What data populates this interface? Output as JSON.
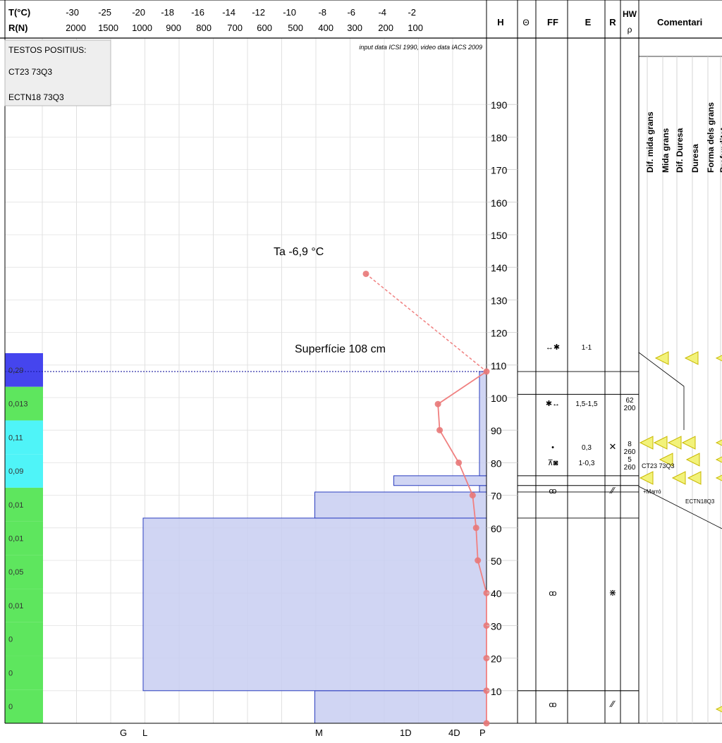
{
  "header": {
    "t_label": "T(°C)",
    "r_label": "R(N)",
    "t_ticks": [
      "-30",
      "-25",
      "-20",
      "-18",
      "-16",
      "-14",
      "-12",
      "-10",
      "-8",
      "-6",
      "-4",
      "-2"
    ],
    "r_ticks": [
      "2000",
      "1500",
      "1000",
      "900",
      "800",
      "700",
      "600",
      "500",
      "400",
      "300",
      "200",
      "100"
    ],
    "col_H": "H",
    "col_theta": "Θ",
    "col_FF": "FF",
    "col_E": "E",
    "col_R": "R",
    "col_HW": "HW",
    "col_rho": "ρ",
    "col_comments": "Comentari"
  },
  "tests_box": {
    "title": "TESTOS POSITIUS:",
    "lines": [
      "CT23 73Q3",
      "ECTN18 73Q3"
    ]
  },
  "source_note": "input data ICSI 1990, video data IACS 2009",
  "air_temp_label": "Ta  -6,9 °C",
  "surface_label": "Superfície  108 cm",
  "hardness_bottom_labels": [
    "G",
    "L",
    "M",
    "1D",
    "4D",
    "P"
  ],
  "comment_headers": [
    "Dif. mida grans",
    "Mida grans",
    "Dif. Duresa",
    "Duresa",
    "Forma dels grans",
    "Profunditat"
  ],
  "colors": {
    "layer_fill": "#c8cef1",
    "layer_stroke": "#2a3dbf",
    "temp_line": "#f08080",
    "temp_point": "#e87878",
    "surface_line": "#1a1aa0",
    "stability_blue": "#4545ee",
    "stability_green": "#5ee65e",
    "stability_cyan": "#4ff4f8",
    "triangle_fill": "#f2f27a",
    "triangle_stroke": "#c8b800"
  },
  "stability": [
    {
      "value": "0,29",
      "color": "blue"
    },
    {
      "value": "0,013",
      "color": "green"
    },
    {
      "value": "0,11",
      "color": "cyan"
    },
    {
      "value": "0,09",
      "color": "cyan"
    },
    {
      "value": "0,01",
      "color": "green"
    },
    {
      "value": "0,01",
      "color": "green"
    },
    {
      "value": "0,05",
      "color": "green"
    },
    {
      "value": "0,01",
      "color": "green"
    },
    {
      "value": "0",
      "color": "green"
    },
    {
      "value": "0",
      "color": "green"
    },
    {
      "value": "0",
      "color": "green"
    }
  ],
  "layer_table": [
    {
      "ff": "↔✱",
      "e": "1-1",
      "r": "",
      "hw": "",
      "rho": ""
    },
    {
      "ff": "✱↔",
      "e": "1,5-1,5",
      "r": "",
      "hw": "62",
      "rho": "200"
    },
    {
      "ff": "•",
      "e": "0,3",
      "r": "✕",
      "hw": "8",
      "rho": "260"
    },
    {
      "ff": "⊼◙",
      "e": "1-0,3",
      "r": "",
      "hw": "5",
      "rho": "260"
    },
    {
      "ff": "ꝏ",
      "e": "",
      "r": "⁄⁄",
      "hw": "",
      "rho": ""
    },
    {
      "ff": "ꝏ",
      "e": "",
      "r": "⋇",
      "hw": "",
      "rho": ""
    },
    {
      "ff": "ꝏ",
      "e": "",
      "r": "⁄⁄",
      "hw": "",
      "rho": ""
    }
  ],
  "comment_notes": [
    "CT23 73Q3",
    "+Marró",
    "ECTN18Q3"
  ],
  "chart_data": {
    "type": "line",
    "title": "",
    "height_axis": {
      "label": "H",
      "unit": "cm",
      "min": 0,
      "max": 200,
      "ticks": [
        10,
        20,
        30,
        40,
        50,
        60,
        70,
        80,
        90,
        100,
        110,
        120,
        130,
        140,
        150,
        160,
        170,
        180,
        190
      ]
    },
    "surface_height": 108,
    "temperature_series": {
      "name": "",
      "points": [
        {
          "h": 138,
          "t": -6.9
        },
        {
          "h": 108,
          "t": 0
        },
        {
          "h": 98,
          "t": -2.8
        },
        {
          "h": 90,
          "t": -2.7
        },
        {
          "h": 80,
          "t": -1.6
        },
        {
          "h": 70,
          "t": -0.8
        },
        {
          "h": 60,
          "t": -0.6
        },
        {
          "h": 50,
          "t": -0.5
        },
        {
          "h": 40,
          "t": 0
        },
        {
          "h": 30,
          "t": 0
        },
        {
          "h": 20,
          "t": 0
        },
        {
          "h": 10,
          "t": 0
        },
        {
          "h": 0,
          "t": 0
        }
      ]
    },
    "hardness_layers": [
      {
        "from": 0,
        "to": 10,
        "resistance_N": 500
      },
      {
        "from": 10,
        "to": 63,
        "resistance_N": 1000
      },
      {
        "from": 63,
        "to": 71,
        "resistance_N": 500
      },
      {
        "from": 71,
        "to": 73,
        "resistance_N": 0
      },
      {
        "from": 73,
        "to": 76,
        "resistance_N": 270
      },
      {
        "from": 76,
        "to": 108,
        "resistance_N": 0
      }
    ]
  }
}
